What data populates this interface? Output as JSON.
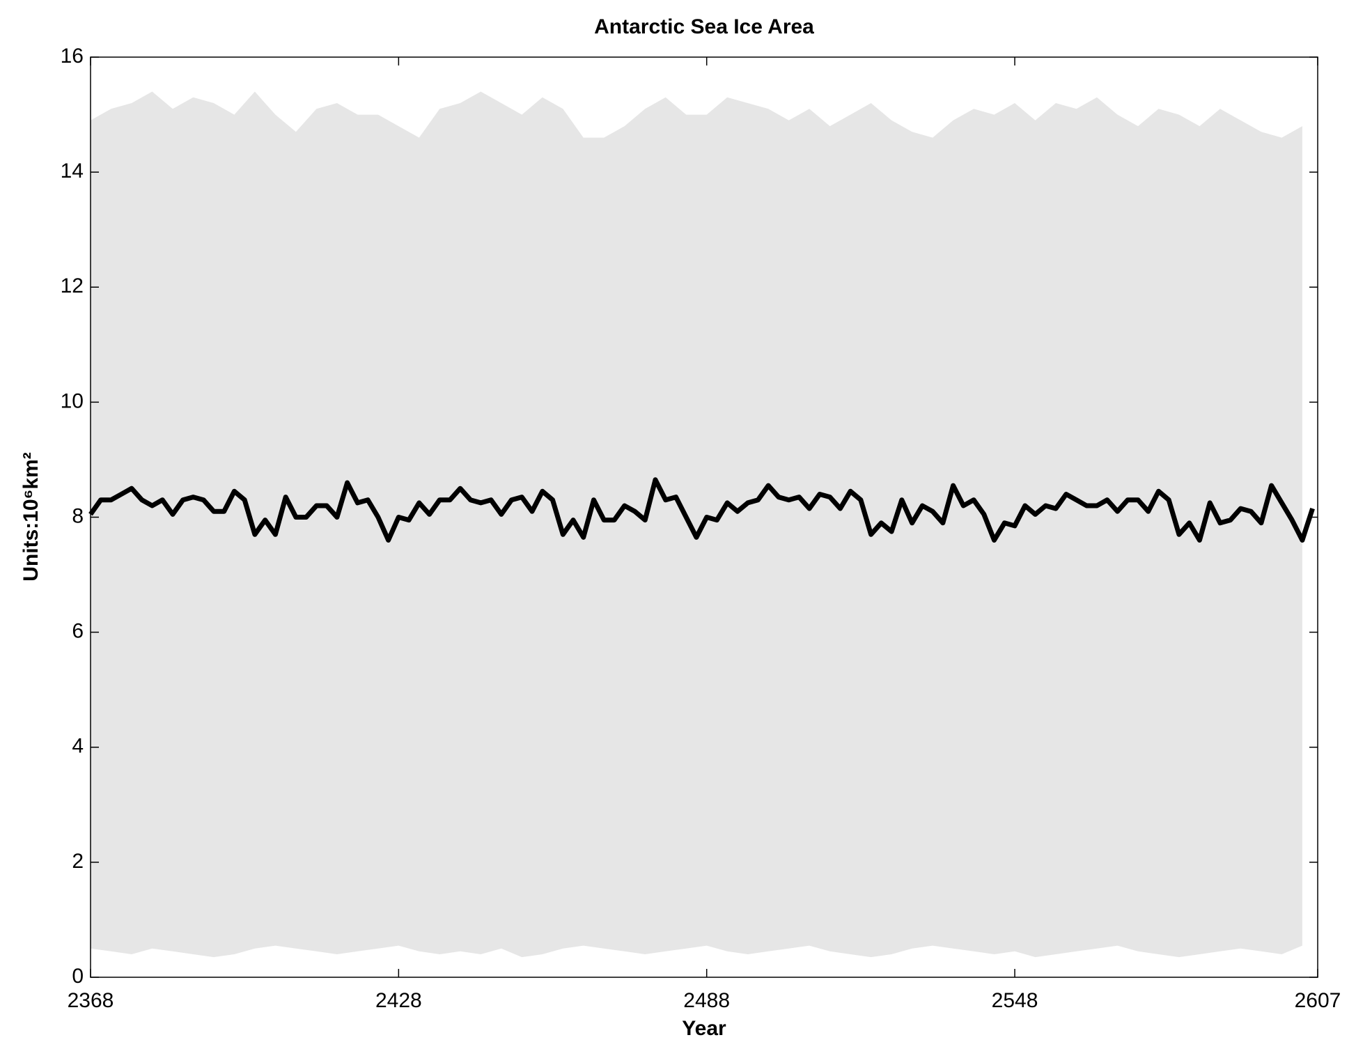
{
  "chart_data": {
    "type": "line",
    "title": "Antarctic Sea Ice Area",
    "xlabel": "Year",
    "ylabel": "Units:10⁶km²",
    "xlim": [
      2368,
      2607
    ],
    "xticks": [
      2368,
      2428,
      2488,
      2548,
      2607
    ],
    "ylim": [
      0,
      16
    ],
    "yticks": [
      0,
      2,
      4,
      6,
      8,
      10,
      12,
      14,
      16
    ],
    "grid": false,
    "band": {
      "color": "#e6e6e6",
      "x": [
        2368,
        2372,
        2376,
        2380,
        2384,
        2388,
        2392,
        2396,
        2400,
        2404,
        2408,
        2412,
        2416,
        2420,
        2424,
        2428,
        2432,
        2436,
        2440,
        2444,
        2448,
        2452,
        2456,
        2460,
        2464,
        2468,
        2472,
        2476,
        2480,
        2484,
        2488,
        2492,
        2496,
        2500,
        2504,
        2508,
        2512,
        2516,
        2520,
        2524,
        2528,
        2532,
        2536,
        2540,
        2544,
        2548,
        2552,
        2556,
        2560,
        2564,
        2568,
        2572,
        2576,
        2580,
        2584,
        2588,
        2592,
        2596,
        2600,
        2604
      ],
      "upper": [
        14.9,
        15.1,
        15.2,
        15.4,
        15.1,
        15.3,
        15.2,
        15.0,
        15.4,
        15.0,
        14.7,
        15.1,
        15.2,
        15.0,
        15.0,
        14.8,
        14.6,
        15.1,
        15.2,
        15.4,
        15.2,
        15.0,
        15.3,
        15.1,
        14.6,
        14.6,
        14.8,
        15.1,
        15.3,
        15.0,
        15.0,
        15.3,
        15.2,
        15.1,
        14.9,
        15.1,
        14.8,
        15.0,
        15.2,
        14.9,
        14.7,
        14.6,
        14.9,
        15.1,
        15.0,
        15.2,
        14.9,
        15.2,
        15.1,
        15.3,
        15.0,
        14.8,
        15.1,
        15.0,
        14.8,
        15.1,
        14.9,
        14.7,
        14.6,
        14.8
      ],
      "lower": [
        0.5,
        0.45,
        0.4,
        0.5,
        0.45,
        0.4,
        0.35,
        0.4,
        0.5,
        0.55,
        0.5,
        0.45,
        0.4,
        0.45,
        0.5,
        0.55,
        0.45,
        0.4,
        0.45,
        0.4,
        0.5,
        0.35,
        0.4,
        0.5,
        0.55,
        0.5,
        0.45,
        0.4,
        0.45,
        0.5,
        0.55,
        0.45,
        0.4,
        0.45,
        0.5,
        0.55,
        0.45,
        0.4,
        0.35,
        0.4,
        0.5,
        0.55,
        0.5,
        0.45,
        0.4,
        0.45,
        0.35,
        0.4,
        0.45,
        0.5,
        0.55,
        0.45,
        0.4,
        0.35,
        0.4,
        0.45,
        0.5,
        0.45,
        0.4,
        0.55
      ]
    },
    "x": [
      2368,
      2370,
      2372,
      2374,
      2376,
      2378,
      2380,
      2382,
      2384,
      2386,
      2388,
      2390,
      2392,
      2394,
      2396,
      2398,
      2400,
      2402,
      2404,
      2406,
      2408,
      2410,
      2412,
      2414,
      2416,
      2418,
      2420,
      2422,
      2424,
      2426,
      2428,
      2430,
      2432,
      2434,
      2436,
      2438,
      2440,
      2442,
      2444,
      2446,
      2448,
      2450,
      2452,
      2454,
      2456,
      2458,
      2460,
      2462,
      2464,
      2466,
      2468,
      2470,
      2472,
      2474,
      2476,
      2478,
      2480,
      2482,
      2484,
      2486,
      2488,
      2490,
      2492,
      2494,
      2496,
      2498,
      2500,
      2502,
      2504,
      2506,
      2508,
      2510,
      2512,
      2514,
      2516,
      2518,
      2520,
      2522,
      2524,
      2526,
      2528,
      2530,
      2532,
      2534,
      2536,
      2538,
      2540,
      2542,
      2544,
      2546,
      2548,
      2550,
      2552,
      2554,
      2556,
      2558,
      2560,
      2562,
      2564,
      2566,
      2568,
      2570,
      2572,
      2574,
      2576,
      2578,
      2580,
      2582,
      2584,
      2586,
      2588,
      2590,
      2592,
      2594,
      2596,
      2598,
      2600,
      2602,
      2604,
      2606
    ],
    "series": [
      {
        "color": "#000000",
        "values": [
          8.05,
          8.3,
          8.3,
          8.4,
          8.5,
          8.3,
          8.2,
          8.3,
          8.05,
          8.3,
          8.35,
          8.3,
          8.1,
          8.1,
          8.45,
          8.3,
          7.7,
          7.95,
          7.7,
          8.35,
          8.0,
          8.0,
          8.2,
          8.2,
          8.0,
          8.6,
          8.25,
          8.3,
          8.0,
          7.6,
          8.0,
          7.95,
          8.25,
          8.05,
          8.3,
          8.3,
          8.5,
          8.3,
          8.25,
          8.3,
          8.05,
          8.3,
          8.35,
          8.1,
          8.45,
          8.3,
          7.7,
          7.95,
          7.65,
          8.3,
          7.95,
          7.95,
          8.2,
          8.1,
          7.95,
          8.65,
          8.3,
          8.35,
          8.0,
          7.65,
          8.0,
          7.95,
          8.25,
          8.1,
          8.25,
          8.3,
          8.55,
          8.35,
          8.3,
          8.35,
          8.15,
          8.4,
          8.35,
          8.15,
          8.45,
          8.3,
          7.7,
          7.9,
          7.75,
          8.3,
          7.9,
          8.2,
          8.1,
          7.9,
          8.55,
          8.2,
          8.3,
          8.05,
          7.6,
          7.9,
          7.85,
          8.2,
          8.05,
          8.2,
          8.15,
          8.4,
          8.3,
          8.2,
          8.2,
          8.3,
          8.1,
          8.3,
          8.3,
          8.1,
          8.45,
          8.3,
          7.7,
          7.9,
          7.6,
          8.25,
          7.9,
          7.95,
          8.15,
          8.1,
          7.9,
          8.55,
          8.25,
          7.95,
          7.6,
          8.15
        ]
      }
    ]
  }
}
